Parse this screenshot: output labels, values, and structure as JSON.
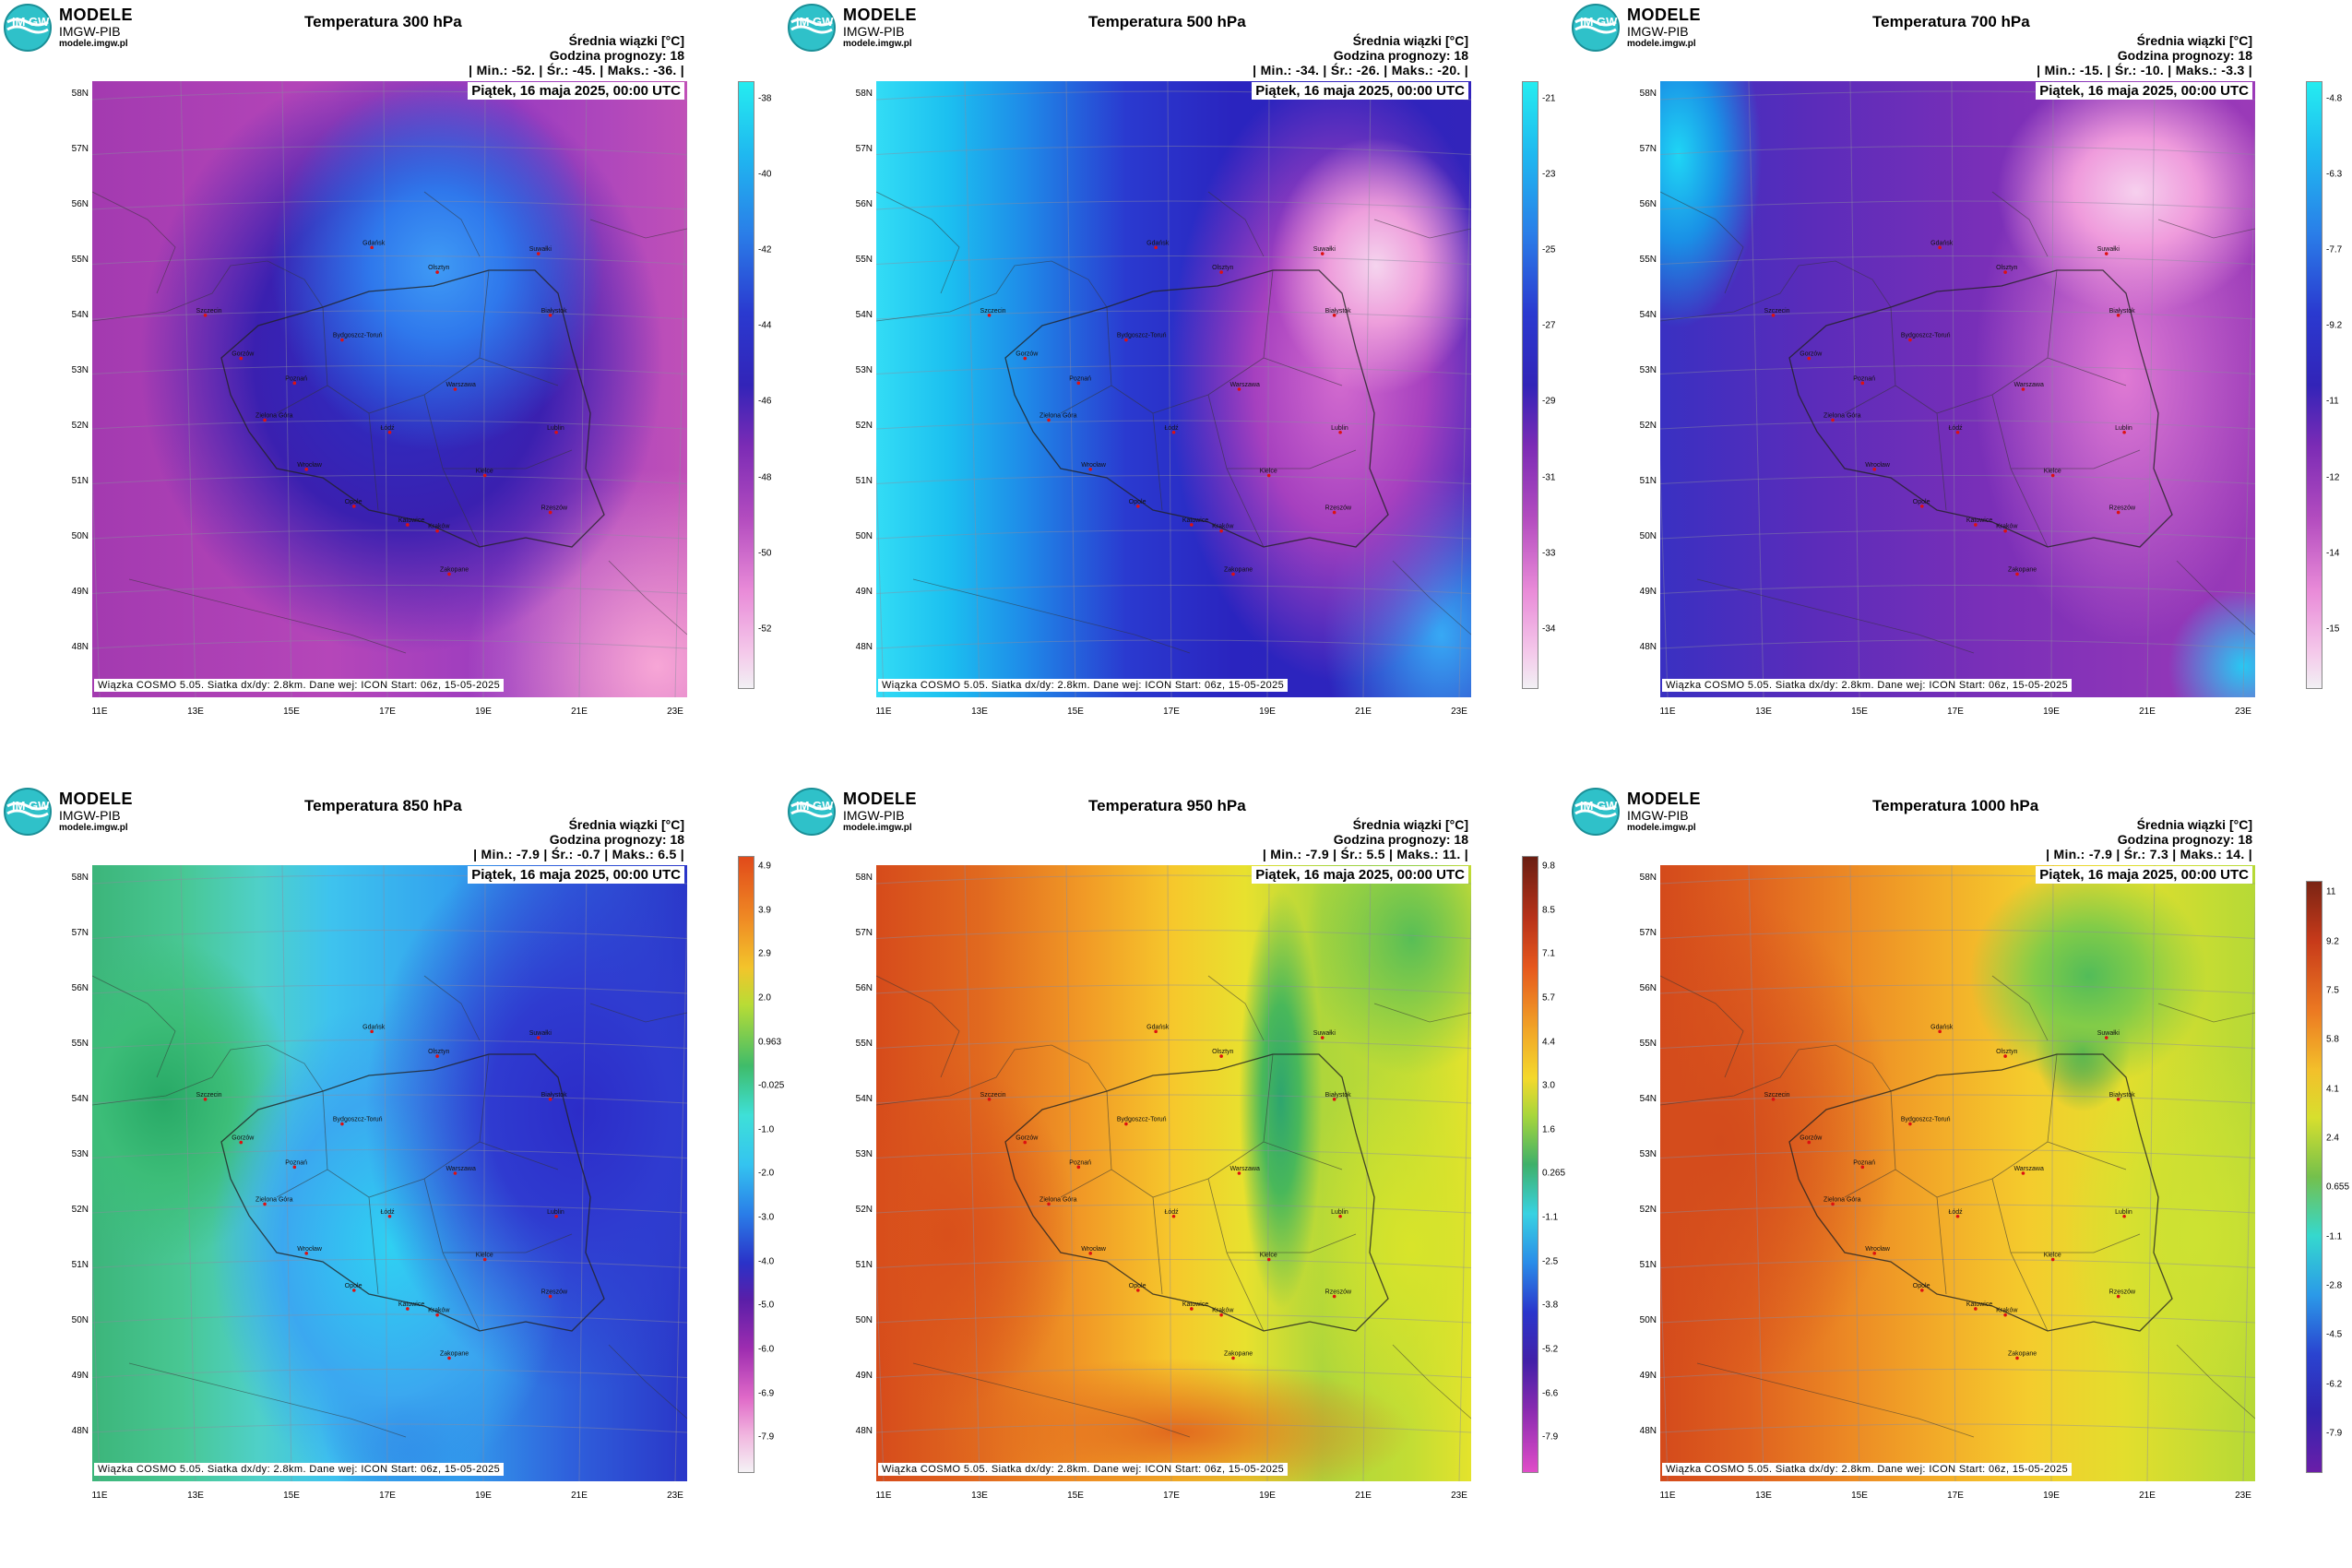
{
  "brand": {
    "title": "MODELE",
    "subtitle": "IMGW-PIB",
    "url": "modele.imgw.pl",
    "mark_text": "IM GW"
  },
  "common": {
    "units_label": "Średnia wiązki [°C]",
    "forecast_hour_label": "Godzina prognozy: 18",
    "date_label": "Piątek, 16 maja 2025, 00:00 UTC",
    "credit": "Wiązka COSMO 5.05. Siatka dx/dy: 2.8km. Dane wej: ICON Start: 06z, 15-05-2025",
    "lat_labels": [
      "58N",
      "57N",
      "56N",
      "55N",
      "54N",
      "53N",
      "52N",
      "51N",
      "50N",
      "49N",
      "48N"
    ],
    "lon_labels": [
      "11E",
      "13E",
      "15E",
      "17E",
      "19E",
      "21E",
      "23E"
    ],
    "city_names": [
      "Gdańsk",
      "Olsztyn",
      "Suwałki",
      "Szczecin",
      "Bydgoszcz-Toruń",
      "Białystok",
      "Gorzów",
      "Poznań",
      "Warszawa",
      "Zielona Góra",
      "Łódź",
      "Lublin",
      "Wrocław",
      "Kielce",
      "Opole",
      "Katowice",
      "Kraków",
      "Rzeszów",
      "Zakopane"
    ]
  },
  "panels": [
    {
      "id": "t300",
      "title": "Temperatura 300 hPa",
      "stats": "| Min.:    -52. | Śr.:    -45. | Maks.:    -36. |",
      "colorbar_ticks": [
        "-38",
        "-40",
        "-42",
        "-44",
        "-46",
        "-48",
        "-50",
        "-52"
      ],
      "scheme": "upper",
      "cold_hue": "#3a8ff2"
    },
    {
      "id": "t500",
      "title": "Temperatura 500 hPa",
      "stats": "| Min.:    -34. | Śr.:    -26. | Maks.:    -20. |",
      "colorbar_ticks": [
        "-21",
        "-23",
        "-25",
        "-27",
        "-29",
        "-31",
        "-33",
        "-34"
      ],
      "scheme": "upper",
      "cold_hue": "#1aa8f0"
    },
    {
      "id": "t700",
      "title": "Temperatura 700 hPa",
      "stats": "| Min.:    -15. | Śr.:    -10. | Maks.:    -3.3 |",
      "colorbar_ticks": [
        "-4.8",
        "-6.3",
        "-7.7",
        "-9.2",
        "-11",
        "-12",
        "-14",
        "-15"
      ],
      "scheme": "mid",
      "cold_hue": "#22b7ee"
    },
    {
      "id": "t850",
      "title": "Temperatura 850 hPa",
      "stats": "| Min.:    -7.9 | Śr.:    -0.7 | Maks.:    6.5 |",
      "colorbar_ticks": [
        "4.9",
        "3.9",
        "2.9",
        "2.0",
        "0.963",
        "-0.025",
        "-1.0",
        "-2.0",
        "-3.0",
        "-4.0",
        "-5.0",
        "-6.0",
        "-6.9",
        "-7.9"
      ],
      "scheme": "low850",
      "cold_hue": "#2a3fd0"
    },
    {
      "id": "t950",
      "title": "Temperatura 950 hPa",
      "stats": "| Min.:    -7.9 | Śr.:    5.5 | Maks.:    11. |",
      "colorbar_ticks": [
        "9.8",
        "8.5",
        "7.1",
        "5.7",
        "4.4",
        "3.0",
        "1.6",
        "0.265",
        "-1.1",
        "-2.5",
        "-3.8",
        "-5.2",
        "-6.6",
        "-7.9"
      ],
      "scheme": "low950",
      "cold_hue": "#2fb36a"
    },
    {
      "id": "t1000",
      "title": "Temperatura 1000 hPa",
      "stats": "| Min.:    -7.9 | Śr.:    7.3 | Maks.:    14. |",
      "colorbar_ticks": [
        "11",
        "9.2",
        "7.5",
        "5.8",
        "4.1",
        "2.4",
        "0.655",
        "-1.1",
        "-2.8",
        "-4.5",
        "-6.2",
        "-7.9"
      ],
      "scheme": "low1000",
      "cold_hue": "#4fc35a"
    }
  ]
}
